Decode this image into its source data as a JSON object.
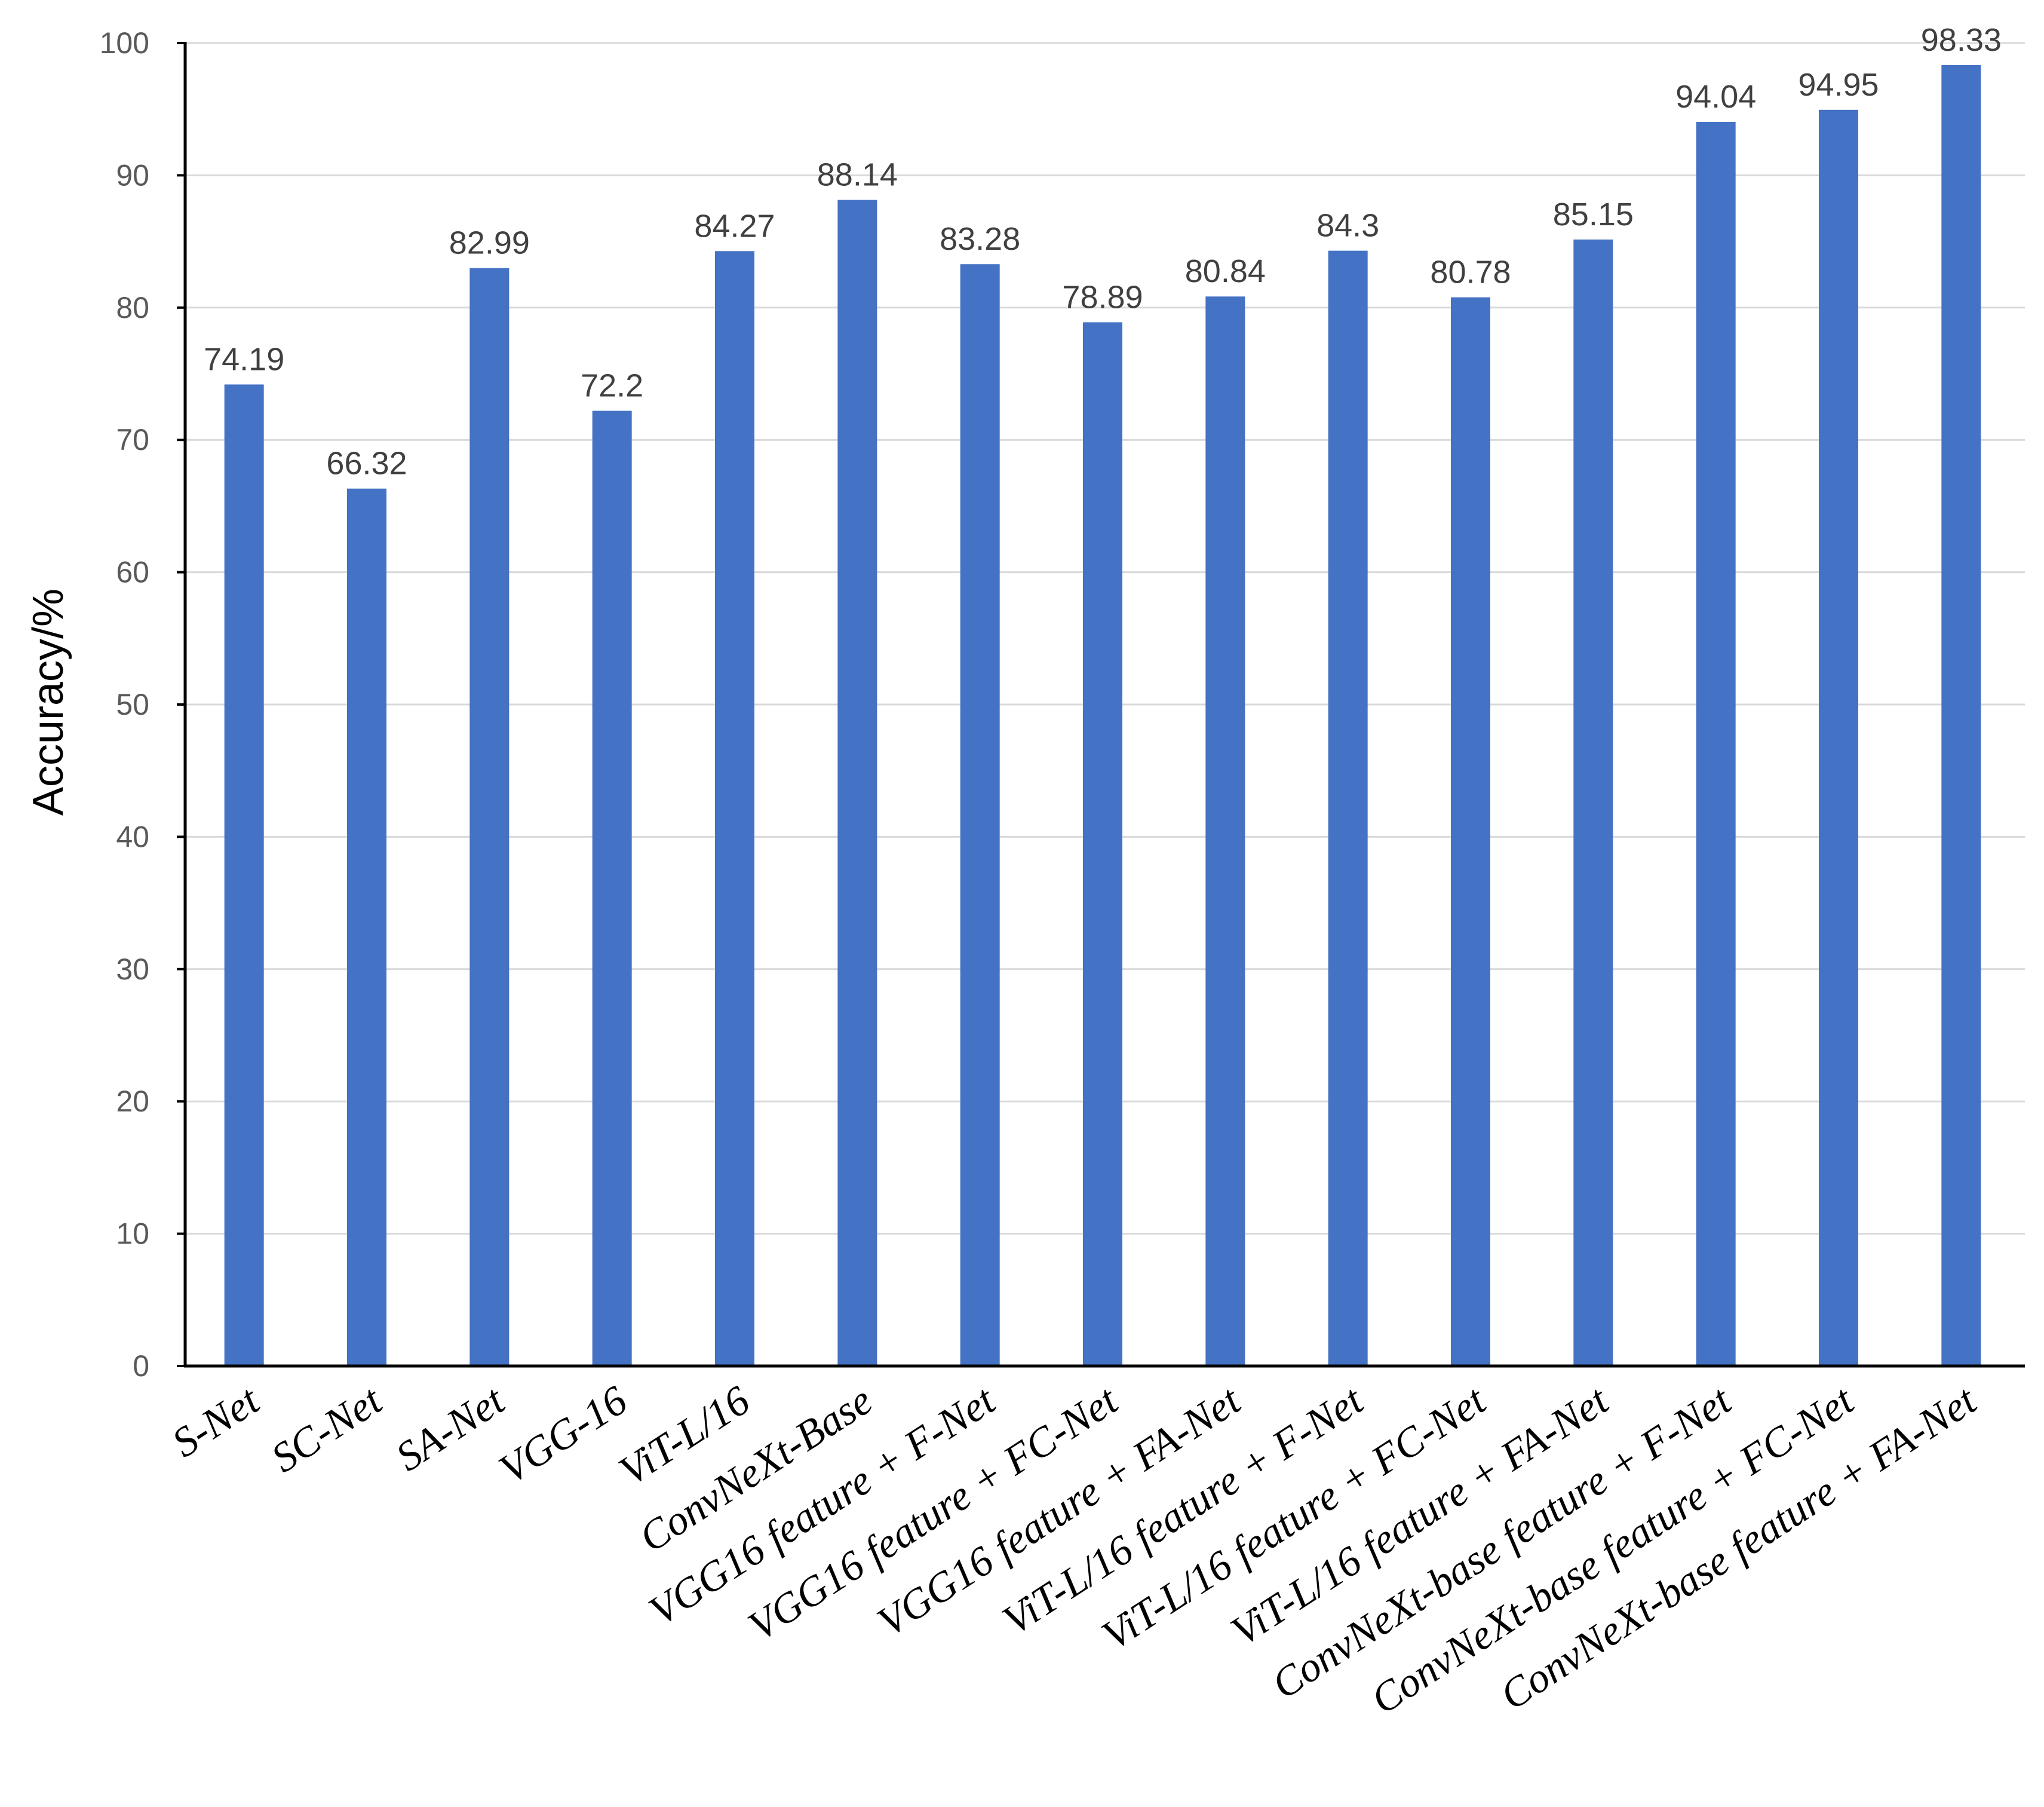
{
  "chart_data": {
    "type": "bar",
    "title": "",
    "xlabel": "",
    "ylabel": "Accuracy/%",
    "ylim": [
      0,
      100
    ],
    "yticks": [
      0,
      10,
      20,
      30,
      40,
      50,
      60,
      70,
      80,
      90,
      100
    ],
    "grid": true,
    "bar_color": "#4472C4",
    "categories": [
      "S-Net",
      "SC-Net",
      "SA-Net",
      "VGG-16",
      "ViT-L/16",
      "ConvNeXt-Base",
      "VGG16 feature + F-Net",
      "VGG16 feature + FC-Net",
      "VGG16 feature + FA-Net",
      "ViT-L/16 feature + F-Net",
      "ViT-L/16 feature + FC-Net",
      "ViT-L/16 feature + FA-Net",
      "ConvNeXt-base  feature + F-Net",
      "ConvNeXt-base  feature + FC-Net",
      "ConvNeXt-base  feature + FA-Net"
    ],
    "values": [
      74.19,
      66.32,
      82.99,
      72.2,
      84.27,
      88.14,
      83.28,
      78.89,
      80.84,
      84.3,
      80.78,
      85.15,
      94.04,
      94.95,
      98.33
    ]
  }
}
